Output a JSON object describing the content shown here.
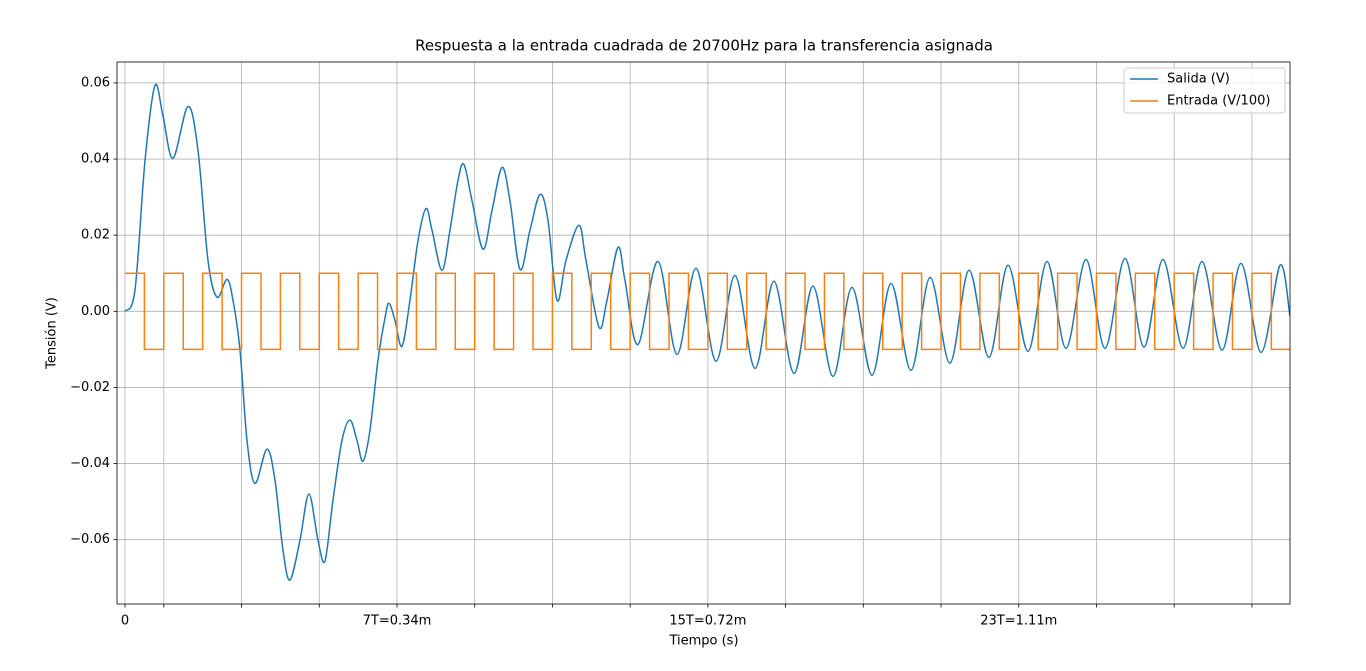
{
  "chart_data": {
    "type": "line",
    "title": "Respuesta a la entrada cuadrada de 20700Hz para la transferencia asignada",
    "x_label": "Tiempo (s)",
    "y_label": "Tensión (V)",
    "xlim": [
      -9.9e-06,
      0.0014483
    ],
    "ylim": [
      -0.0769,
      0.0655
    ],
    "xticks": [
      0,
      {
        "value": 4.8309e-05
      },
      {
        "value": 0.000144928
      },
      {
        "value": 0.000241546
      },
      {
        "value": 0.000338164,
        "label": "7T=0.34m"
      },
      {
        "value": 0.000434783
      },
      {
        "value": 0.000531401
      },
      {
        "value": 0.000628019
      },
      {
        "value": 0.000724638,
        "label": "15T=0.72m"
      },
      {
        "value": 0.000821256
      },
      {
        "value": 0.000917874
      },
      {
        "value": 0.001014493
      },
      {
        "value": 0.001111111,
        "label": "23T=1.11m"
      },
      {
        "value": 0.001207729
      },
      {
        "value": 0.001304348
      },
      {
        "value": 0.001400966
      }
    ],
    "yticks": [
      {
        "value": -0.06,
        "label": "−0.06"
      },
      {
        "value": -0.04,
        "label": "−0.04"
      },
      {
        "value": -0.02,
        "label": "−0.02"
      },
      {
        "value": 0,
        "label": "0.00"
      },
      0.02,
      0.04,
      0.06
    ],
    "grid": true,
    "legend": "upper right",
    "series": [
      {
        "name": "Salida (V)",
        "color": "#1f77b4",
        "interpolation": "smooth",
        "x": [
          0,
          1.24e-05,
          2.49e-05,
          3.73e-05,
          4.72e-05,
          5.97e-05,
          7.83e-05,
          9.08e-05,
          0.0001032,
          0.0001144,
          0.0001268,
          0.0001343,
          0.000143,
          0.0001517,
          0.0001616,
          0.0001765,
          0.0001865,
          0.0001964,
          0.0002051,
          0.0002176,
          0.0002287,
          0.0002399,
          0.0002486,
          0.0002586,
          0.0002698,
          0.0002797,
          0.0002884,
          0.0002959,
          0.0003046,
          0.0003145,
          0.0003232,
          0.0003282,
          0.0003357,
          0.0003444,
          0.0003543,
          0.0003643,
          0.0003742,
          0.0003817,
          0.0003941,
          0.000404,
          0.000414,
          0.0004214,
          0.0004314,
          0.0004451,
          0.0004563,
          0.0004687,
          0.0004786,
          0.0004911,
          0.0005035,
          0.0005159,
          0.0005259,
          0.0005371,
          0.0005483,
          0.0005644,
          0.0005731,
          0.0005893,
          0.0005992,
          0.0006129,
          0.0006216,
          0.0006378,
          0.0006626,
          0.0006862,
          0.0007099,
          0.0007347,
          0.0007584,
          0.0007832,
          0.0008068,
          0.0008317,
          0.0008553,
          0.0008802,
          0.0009038,
          0.0009287,
          0.0009523,
          0.0009772,
          0.0010008,
          0.0010256,
          0.0010493,
          0.0010741,
          0.0010977,
          0.0011226,
          0.0011462,
          0.0011699,
          0.0011947,
          0.0012183,
          0.0012432,
          0.0012668,
          0.0012904,
          0.0013153,
          0.0013389,
          0.0013638,
          0.0013874,
          0.0014123,
          0.0014359,
          0.0014483
        ],
        "values": [
          0,
          0.0055,
          0.0396,
          0.0593,
          0.0514,
          0.0402,
          0.0538,
          0.0423,
          0.0134,
          0.0037,
          0.0084,
          0.0029,
          -0.0102,
          -0.0339,
          -0.0452,
          -0.0362,
          -0.0444,
          -0.0627,
          -0.0706,
          -0.0601,
          -0.048,
          -0.0601,
          -0.0656,
          -0.0496,
          -0.0339,
          -0.0286,
          -0.0339,
          -0.0394,
          -0.0312,
          -0.0129,
          -0.0018,
          0.0021,
          -0.0024,
          -0.0092,
          0.0029,
          0.0186,
          0.027,
          0.0213,
          0.0108,
          0.0213,
          0.0344,
          0.0386,
          0.0291,
          0.0163,
          0.0265,
          0.0378,
          0.0291,
          0.011,
          0.0213,
          0.0307,
          0.0239,
          0.0029,
          0.0134,
          0.0226,
          0.0134,
          -0.0042,
          0.0029,
          0.0168,
          0.0081,
          -0.0087,
          0.0131,
          -0.0113,
          0.0113,
          -0.0131,
          0.0094,
          -0.015,
          0.0079,
          -0.0163,
          0.0066,
          -0.0171,
          0.0063,
          -0.0168,
          0.0073,
          -0.0155,
          0.0089,
          -0.0136,
          0.0108,
          -0.0121,
          0.0121,
          -0.0105,
          0.0131,
          -0.0097,
          0.0136,
          -0.0097,
          0.0139,
          -0.0094,
          0.0136,
          -0.0097,
          0.0131,
          -0.0102,
          0.0126,
          -0.0108,
          0.0121,
          -0.0013
        ]
      },
      {
        "name": "Entrada (V/100)",
        "color": "#ff7f0e",
        "drawstyle": "steps-post",
        "x": [
          0,
          2.4155e-05,
          4.8309e-05,
          7.2464e-05,
          9.6618e-05,
          0.000120773,
          0.000144928,
          0.000169082,
          0.000193237,
          0.000217391,
          0.000241546,
          0.0002657,
          0.000289855,
          0.00031401,
          0.000338164,
          0.000362319,
          0.000386473,
          0.000410628,
          0.000434783,
          0.000458937,
          0.000483092,
          0.000507246,
          0.000531401,
          0.000555556,
          0.00057971,
          0.000603865,
          0.000628019,
          0.000652174,
          0.000676329,
          0.000700483,
          0.000724638,
          0.000748792,
          0.000772947,
          0.000797101,
          0.000821256,
          0.000845411,
          0.000869565,
          0.00089372,
          0.000917874,
          0.000942029,
          0.000966184,
          0.000990338,
          0.001014493,
          0.001038647,
          0.001062802,
          0.001086957,
          0.001111111,
          0.001135266,
          0.00115942,
          0.001183575,
          0.001207729,
          0.001231884,
          0.001256039,
          0.001280193,
          0.001304348,
          0.001328502,
          0.001352657,
          0.001376812,
          0.001400966,
          0.001425121,
          0.001449275
        ],
        "values": [
          0.01,
          -0.01,
          0.01,
          -0.01,
          0.01,
          -0.01,
          0.01,
          -0.01,
          0.01,
          -0.01,
          0.01,
          -0.01,
          0.01,
          -0.01,
          0.01,
          -0.01,
          0.01,
          -0.01,
          0.01,
          -0.01,
          0.01,
          -0.01,
          0.01,
          -0.01,
          0.01,
          -0.01,
          0.01,
          -0.01,
          0.01,
          -0.01,
          0.01,
          -0.01,
          0.01,
          -0.01,
          0.01,
          -0.01,
          0.01,
          -0.01,
          0.01,
          -0.01,
          0.01,
          -0.01,
          0.01,
          -0.01,
          0.01,
          -0.01,
          0.01,
          -0.01,
          0.01,
          -0.01,
          0.01,
          -0.01,
          0.01,
          -0.01,
          0.01,
          -0.01,
          0.01,
          -0.01,
          0.01,
          -0.01,
          -0.01
        ]
      }
    ]
  }
}
